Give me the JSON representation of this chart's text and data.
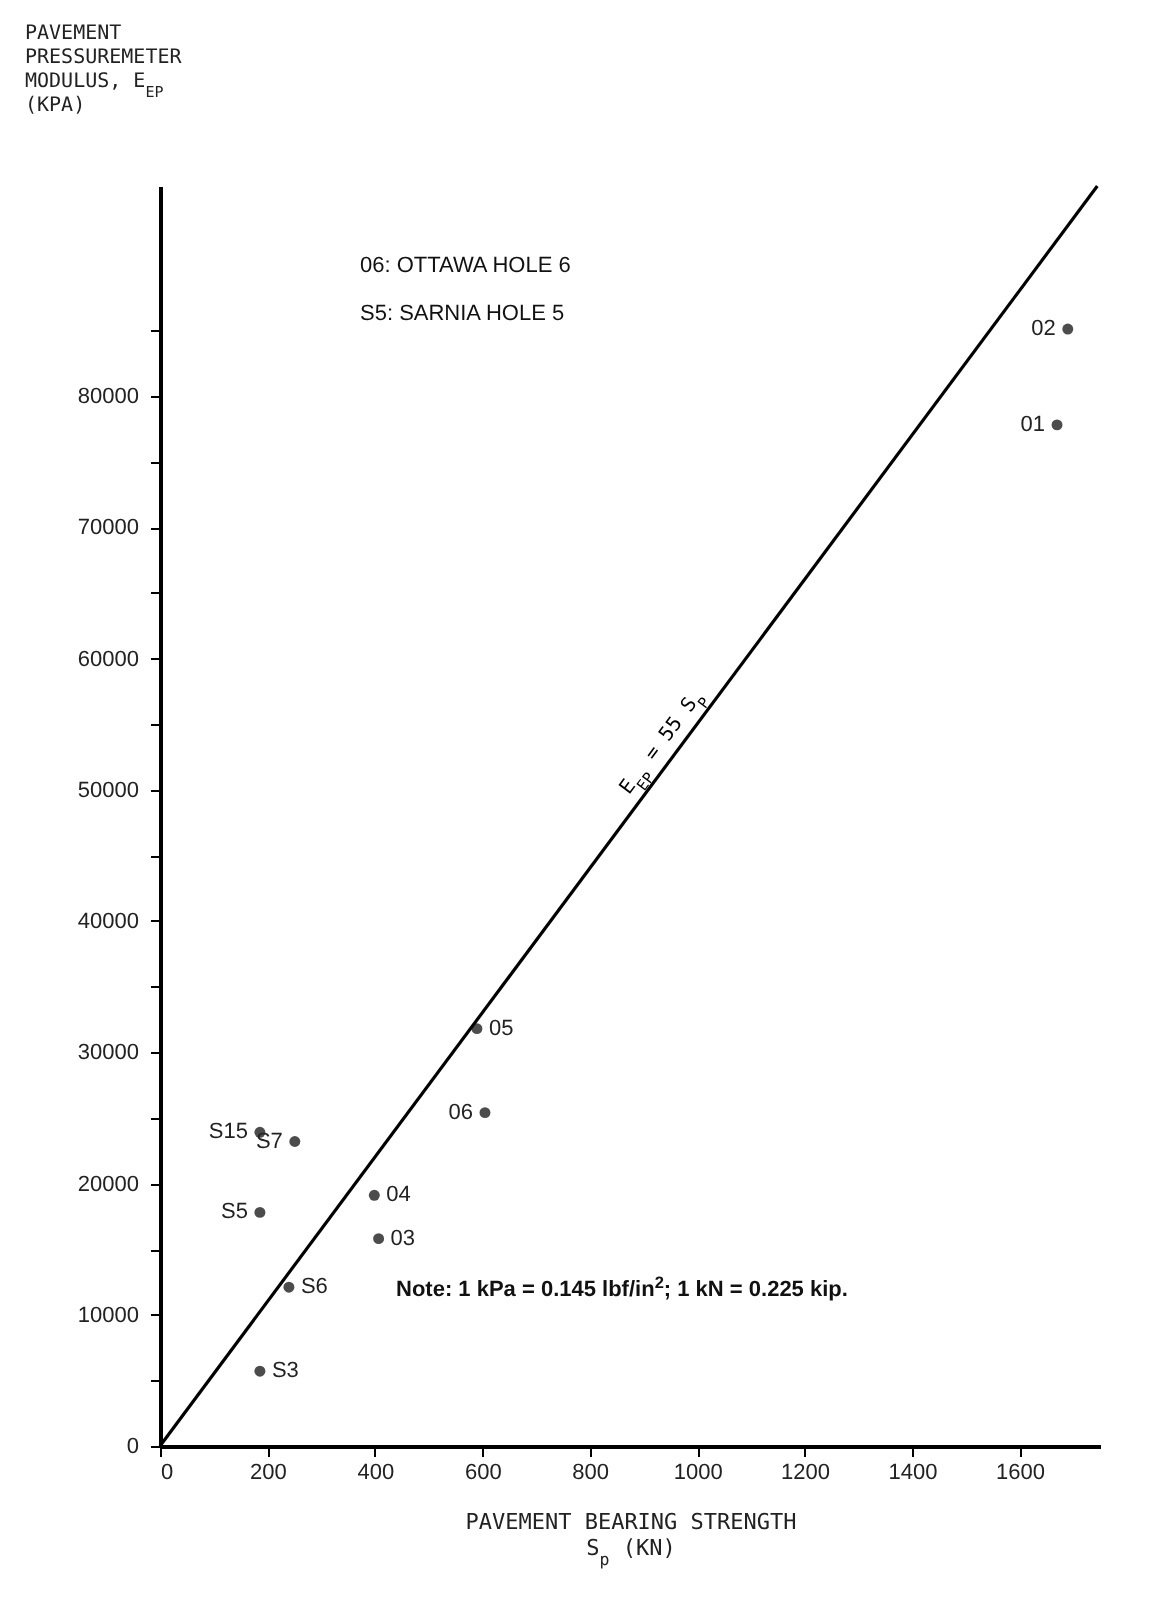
{
  "chart_data": {
    "type": "scatter",
    "xlabel": "PAVEMENT BEARING STRENGTH\nS$_{p}$ (KN)",
    "ylabel": "PAVEMENT\nPRESSUREMETER\nMODULUS, E$_{EP}$\n(KPA)",
    "xlim": [
      0,
      1750
    ],
    "ylim": [
      0,
      96000
    ],
    "xticks": [
      0,
      200,
      400,
      600,
      800,
      1000,
      1200,
      1400,
      1600
    ],
    "yticks": [
      0,
      {
        "value": 5000,
        "label": null
      },
      10000,
      {
        "value": 15000,
        "label": null
      },
      20000,
      {
        "value": 25000,
        "label": null
      },
      30000,
      {
        "value": 35000,
        "label": null
      },
      40000,
      {
        "value": 45000,
        "label": null
      },
      50000,
      {
        "value": 55000,
        "label": null
      },
      60000,
      {
        "value": 65000,
        "label": null
      },
      70000,
      {
        "value": 75000,
        "label": null
      },
      80000,
      {
        "value": 85000,
        "label": null
      }
    ],
    "grid": false,
    "series": [
      {
        "marker": "circle",
        "color": "#000000",
        "x": [
          1670,
          1690,
          407,
          399,
          590,
          605,
          186,
          186,
          240,
          251,
          186
        ],
        "values": [
          77800,
          85100,
          15800,
          19100,
          31800,
          25400,
          5700,
          17800,
          12100,
          23200,
          23900
        ]
      },
      {
        "type": "line",
        "name": "E$_{EP}$ = 55 S$_{P}$",
        "color": "#000000",
        "line_style": "solid",
        "x": [
          0,
          1745
        ],
        "values": [
          0,
          96000
        ]
      }
    ],
    "annotations": [
      {
        "text": "01",
        "x": 1670,
        "y": 77800
      },
      {
        "text": "02",
        "x": 1690,
        "y": 85100
      },
      {
        "text": "03",
        "x": 407,
        "y": 15800
      },
      {
        "text": "04",
        "x": 399,
        "y": 19100
      },
      {
        "text": "05",
        "x": 590,
        "y": 31800
      },
      {
        "text": "06",
        "x": 605,
        "y": 25400
      },
      {
        "text": "S3",
        "x": 186,
        "y": 5700
      },
      {
        "text": "S5",
        "x": 186,
        "y": 17800
      },
      {
        "text": "S6",
        "x": 240,
        "y": 12100
      },
      {
        "text": "S7",
        "x": 251,
        "y": 23200
      },
      {
        "text": "S15",
        "x": 186,
        "y": 23900
      },
      "06:  OTTAWA HOLE 6",
      "S5:  SARNIA HOLE 5",
      "Note:  1 kPa = 0.145 lbf/in$^{2}$; 1 kN = 0.225 kip."
    ]
  }
}
